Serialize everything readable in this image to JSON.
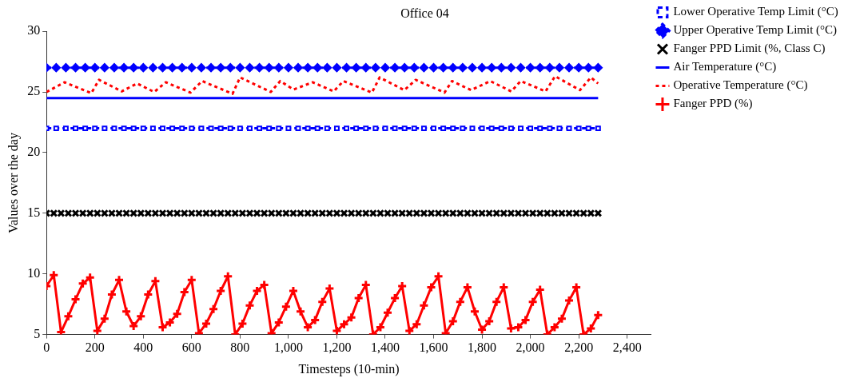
{
  "chart_data": {
    "type": "line",
    "title": "Office 04",
    "xlabel": "Timesteps (10-min)",
    "ylabel": "Values over the day",
    "x": [
      0,
      30,
      60,
      90,
      120,
      150,
      180,
      210,
      240,
      270,
      300,
      330,
      360,
      390,
      420,
      450,
      480,
      510,
      540,
      570,
      600,
      630,
      660,
      690,
      720,
      750,
      780,
      810,
      840,
      870,
      900,
      930,
      960,
      990,
      1020,
      1050,
      1080,
      1110,
      1140,
      1170,
      1200,
      1230,
      1260,
      1290,
      1320,
      1350,
      1380,
      1410,
      1440,
      1470,
      1500,
      1530,
      1560,
      1590,
      1620,
      1650,
      1680,
      1710,
      1740,
      1770,
      1800,
      1830,
      1860,
      1890,
      1920,
      1950,
      1980,
      2010,
      2040,
      2070,
      2100,
      2130,
      2160,
      2190,
      2220,
      2250,
      2280
    ],
    "series": [
      {
        "name": "Lower Operative Temp Limit (°C)",
        "color": "#0000ff",
        "marker": "square",
        "line_style": "dashed",
        "x": [
          0,
          40,
          80,
          120,
          160,
          200,
          240,
          280,
          320,
          360,
          400,
          440,
          480,
          520,
          560,
          600,
          640,
          680,
          720,
          760,
          800,
          840,
          880,
          920,
          960,
          1000,
          1040,
          1080,
          1120,
          1160,
          1200,
          1240,
          1280,
          1320,
          1360,
          1400,
          1440,
          1480,
          1520,
          1560,
          1600,
          1640,
          1680,
          1720,
          1760,
          1800,
          1840,
          1880,
          1920,
          1960,
          2000,
          2040,
          2080,
          2120,
          2160,
          2200,
          2240,
          2280
        ],
        "values": [
          22,
          22,
          22,
          22,
          22,
          22,
          22,
          22,
          22,
          22,
          22,
          22,
          22,
          22,
          22,
          22,
          22,
          22,
          22,
          22,
          22,
          22,
          22,
          22,
          22,
          22,
          22,
          22,
          22,
          22,
          22,
          22,
          22,
          22,
          22,
          22,
          22,
          22,
          22,
          22,
          22,
          22,
          22,
          22,
          22,
          22,
          22,
          22,
          22,
          22,
          22,
          22,
          22,
          22,
          22,
          22,
          22,
          22
        ]
      },
      {
        "name": "Upper Operative Temp Limit (°C)",
        "color": "#0000ff",
        "marker": "diamond",
        "line_style": "dashed",
        "x": [
          0,
          40,
          80,
          120,
          160,
          200,
          240,
          280,
          320,
          360,
          400,
          440,
          480,
          520,
          560,
          600,
          640,
          680,
          720,
          760,
          800,
          840,
          880,
          920,
          960,
          1000,
          1040,
          1080,
          1120,
          1160,
          1200,
          1240,
          1280,
          1320,
          1360,
          1400,
          1440,
          1480,
          1520,
          1560,
          1600,
          1640,
          1680,
          1720,
          1760,
          1800,
          1840,
          1880,
          1920,
          1960,
          2000,
          2040,
          2080,
          2120,
          2160,
          2200,
          2240,
          2280
        ],
        "values": [
          27,
          27,
          27,
          27,
          27,
          27,
          27,
          27,
          27,
          27,
          27,
          27,
          27,
          27,
          27,
          27,
          27,
          27,
          27,
          27,
          27,
          27,
          27,
          27,
          27,
          27,
          27,
          27,
          27,
          27,
          27,
          27,
          27,
          27,
          27,
          27,
          27,
          27,
          27,
          27,
          27,
          27,
          27,
          27,
          27,
          27,
          27,
          27,
          27,
          27,
          27,
          27,
          27,
          27,
          27,
          27,
          27,
          27
        ]
      },
      {
        "name": "Fanger PPD Limit (%, Class C)",
        "color": "#000000",
        "type": "scatter",
        "marker": "cross",
        "values": [
          15,
          15,
          15,
          15,
          15,
          15,
          15,
          15,
          15,
          15,
          15,
          15,
          15,
          15,
          15,
          15,
          15,
          15,
          15,
          15,
          15,
          15,
          15,
          15,
          15,
          15,
          15,
          15,
          15,
          15,
          15,
          15,
          15,
          15,
          15,
          15,
          15,
          15,
          15,
          15,
          15,
          15,
          15,
          15,
          15,
          15,
          15,
          15,
          15,
          15,
          15,
          15,
          15,
          15,
          15,
          15,
          15,
          15,
          15,
          15,
          15,
          15,
          15,
          15,
          15,
          15,
          15,
          15,
          15,
          15,
          15,
          15,
          15,
          15,
          15,
          15,
          15
        ]
      },
      {
        "name": "Air Temperature (°C)",
        "color": "#0000ff",
        "marker": "none",
        "line_style": "solid",
        "x": [
          0,
          2280
        ],
        "values": [
          24.5,
          24.5
        ]
      },
      {
        "name": "Operative Temperature (°C)",
        "color": "#ff0000",
        "marker": "none",
        "line_style": "dotted",
        "x": [
          0,
          75,
          185,
          217,
          311,
          374,
          445,
          493,
          595,
          643,
          769,
          800,
          927,
          966,
          1021,
          1100,
          1187,
          1227,
          1345,
          1377,
          1479,
          1526,
          1645,
          1676,
          1755,
          1834,
          1921,
          1960,
          2063,
          2102,
          2205,
          2250,
          2280
        ],
        "values": [
          25.0,
          25.8,
          24.9,
          26.0,
          25.05,
          25.7,
          25.0,
          25.8,
          24.95,
          25.9,
          24.85,
          26.2,
          25.0,
          25.9,
          25.2,
          25.8,
          25.05,
          25.9,
          24.95,
          26.2,
          25.15,
          26.0,
          24.95,
          25.9,
          25.15,
          25.9,
          25.05,
          25.9,
          25.05,
          26.3,
          25.15,
          26.2,
          25.7
        ]
      },
      {
        "name": "Fanger PPD (%)",
        "color": "#ff0000",
        "marker": "cross",
        "line_style": "solid",
        "values": [
          9.0,
          9.9,
          5.2,
          6.5,
          7.9,
          9.2,
          9.7,
          5.3,
          6.3,
          8.3,
          9.5,
          6.9,
          5.7,
          6.5,
          8.3,
          9.4,
          5.6,
          6.0,
          6.7,
          8.5,
          9.5,
          5.1,
          5.9,
          7.1,
          8.6,
          9.8,
          5.0,
          5.9,
          7.4,
          8.6,
          9.1,
          5.1,
          6.0,
          7.3,
          8.6,
          6.9,
          5.6,
          6.2,
          7.7,
          8.8,
          5.3,
          5.85,
          6.4,
          8.0,
          9.1,
          5.0,
          5.6,
          6.8,
          8.0,
          9.0,
          5.3,
          5.85,
          7.4,
          8.9,
          9.8,
          5.1,
          6.1,
          7.7,
          8.9,
          6.9,
          5.4,
          6.1,
          7.7,
          8.9,
          5.5,
          5.6,
          6.2,
          7.7,
          8.7,
          5.0,
          5.6,
          6.3,
          7.8,
          8.9,
          5.0,
          5.5,
          6.6
        ]
      }
    ],
    "xlim": [
      0,
      2500
    ],
    "xticks": [
      0,
      200,
      400,
      600,
      800,
      {
        "value": 1000,
        "label": "1,000"
      },
      {
        "value": 1200,
        "label": "1,200"
      },
      {
        "value": 1400,
        "label": "1,400"
      },
      {
        "value": 1600,
        "label": "1,600"
      },
      {
        "value": 1800,
        "label": "1,800"
      },
      {
        "value": 2000,
        "label": "2,000"
      },
      {
        "value": 2200,
        "label": "2,200"
      },
      {
        "value": 2400,
        "label": "2,400"
      }
    ],
    "ylim": [
      5,
      30
    ],
    "yticks": [
      5,
      10,
      15,
      20,
      25,
      30
    ],
    "grid": false,
    "legend": "right"
  }
}
